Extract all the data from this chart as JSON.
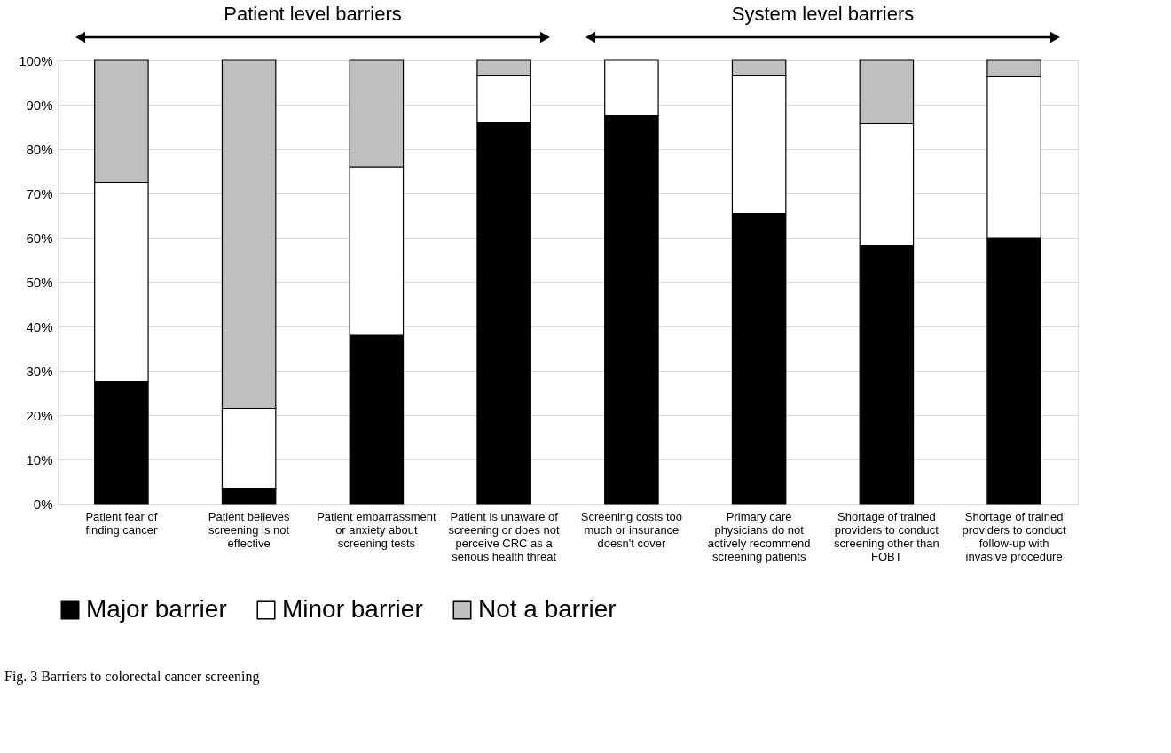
{
  "chart_data": {
    "type": "bar",
    "stacked": true,
    "categories": [
      "Patient fear of finding cancer",
      "Patient believes screening is not effective",
      "Patient embarrassment or anxiety about screening tests",
      "Patient is unaware of screening or does not perceive CRC as a serious health threat",
      "Screening costs too much or insurance doesn't cover",
      "Primary care physicians do not actively recommend screening patients",
      "Shortage of trained providers to conduct screening other than FOBT",
      "Shortage of trained providers to conduct follow-up with invasive procedure"
    ],
    "series": [
      {
        "name": "Major barrier",
        "color": "#000000",
        "values": [
          27.5,
          3.5,
          38,
          86,
          87.5,
          65.5,
          58.3,
          60
        ]
      },
      {
        "name": "Minor barrier",
        "color": "#ffffff",
        "values": [
          45,
          18,
          38,
          10.5,
          12.5,
          31,
          27.4,
          36.3
        ]
      },
      {
        "name": "Not a barrier",
        "color": "#bfbfbf",
        "values": [
          27.5,
          78.5,
          24,
          3.5,
          null,
          3.5,
          14.3,
          3.7
        ]
      }
    ],
    "ylim": [
      0,
      100
    ],
    "yticks": [
      {
        "value": 0,
        "label": "0%"
      },
      {
        "value": 10,
        "label": "10%"
      },
      {
        "value": 20,
        "label": "20%"
      },
      {
        "value": 30,
        "label": "30%"
      },
      {
        "value": 40,
        "label": "40%"
      },
      {
        "value": 50,
        "label": "50%"
      },
      {
        "value": 60,
        "label": "60%"
      },
      {
        "value": 70,
        "label": "70%"
      },
      {
        "value": 80,
        "label": "80%"
      },
      {
        "value": 90,
        "label": "90%"
      },
      {
        "value": 100,
        "label": "100%"
      }
    ],
    "grid": "y",
    "legend": "bottom",
    "annotations": [
      "Patient level barriers",
      "System level barriers",
      "Fig. 3 Barriers to colorectal cancer screening"
    ]
  }
}
